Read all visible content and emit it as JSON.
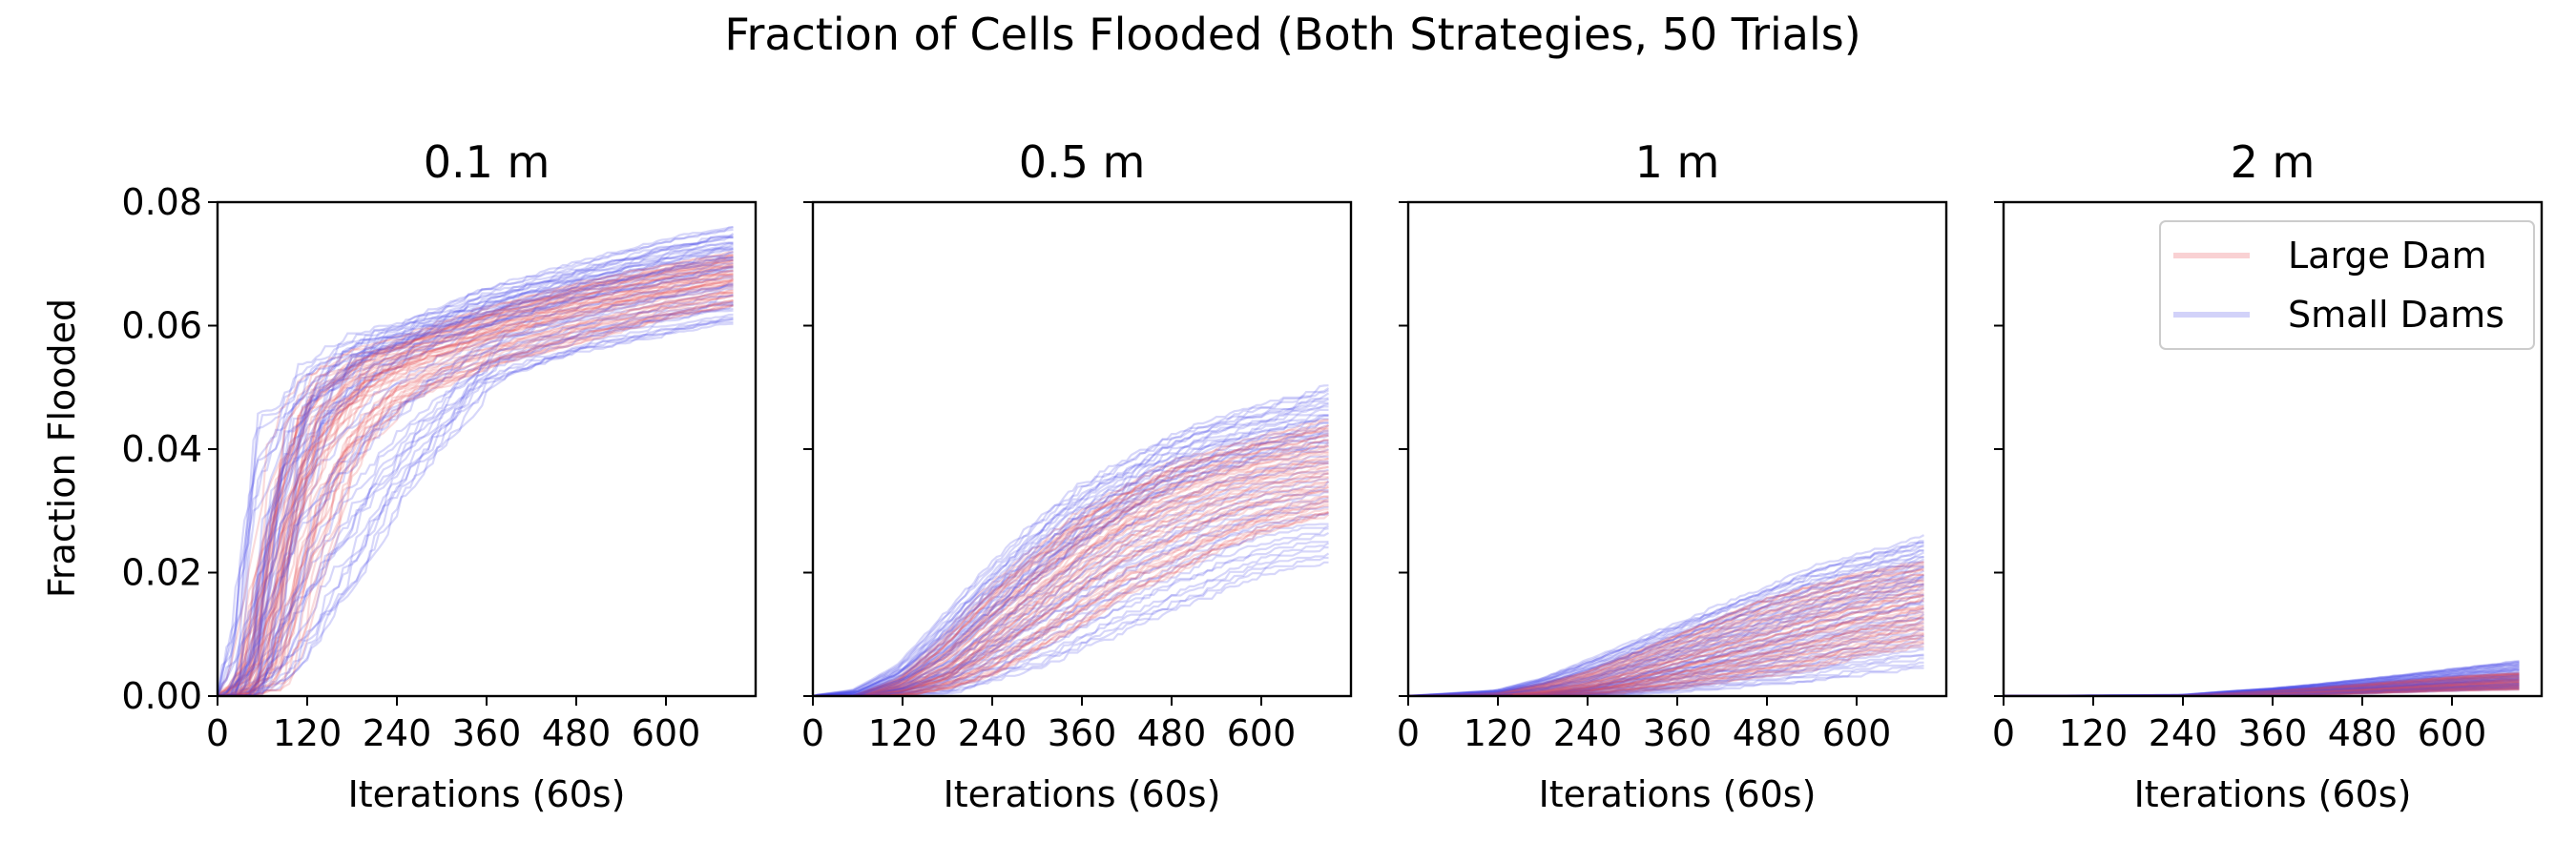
{
  "chart_data": {
    "type": "line",
    "title": "Fraction of Cells Flooded (Both Strategies, 50 Trials)",
    "ylabel": "Fraction Flooded",
    "xlabel": "Iterations (60s)",
    "xlim": [
      0,
      720
    ],
    "ylim": [
      0,
      0.08
    ],
    "xticks": [
      0,
      120,
      240,
      360,
      480,
      600
    ],
    "xtick_labels": [
      "0",
      "120",
      "240",
      "360",
      "480",
      "600"
    ],
    "yticks": [
      0,
      0.02,
      0.04,
      0.06,
      0.08
    ],
    "ytick_labels": [
      "0.00",
      "0.02",
      "0.04",
      "0.06",
      "0.08"
    ],
    "shared_y": true,
    "grid": false,
    "legend_position": "upper-right of last panel",
    "colors": {
      "Large Dam": "#e8494f",
      "Small Dams": "#4a4ae6"
    },
    "legend_entries": [
      "Large Dam",
      "Small Dams"
    ],
    "panels": [
      {
        "title": "0.1 m",
        "series": [
          {
            "name": "Large Dam",
            "trials": 50,
            "x": [
              0,
              30,
              60,
              90,
              120,
              180,
              240,
              360,
              480,
              600,
              690
            ],
            "y_median": [
              0,
              0,
              0.008,
              0.028,
              0.04,
              0.05,
              0.054,
              0.059,
              0.063,
              0.066,
              0.068
            ],
            "y_min": [
              0,
              0,
              0,
              0,
              0.018,
              0.038,
              0.047,
              0.053,
              0.057,
              0.061,
              0.063
            ],
            "y_max": [
              0,
              0.004,
              0.03,
              0.045,
              0.052,
              0.056,
              0.058,
              0.063,
              0.067,
              0.07,
              0.072
            ]
          },
          {
            "name": "Small Dams",
            "trials": 50,
            "x": [
              0,
              30,
              60,
              90,
              120,
              180,
              240,
              360,
              480,
              600,
              690
            ],
            "y_median": [
              0,
              0,
              0.012,
              0.032,
              0.044,
              0.052,
              0.056,
              0.061,
              0.065,
              0.068,
              0.07
            ],
            "y_min": [
              0,
              0,
              0,
              0,
              0.004,
              0.016,
              0.03,
              0.05,
              0.055,
              0.058,
              0.06
            ],
            "y_max": [
              0,
              0.01,
              0.047,
              0.047,
              0.053,
              0.058,
              0.06,
              0.066,
              0.07,
              0.074,
              0.076
            ]
          }
        ]
      },
      {
        "title": "0.5 m",
        "series": [
          {
            "name": "Large Dam",
            "trials": 50,
            "x": [
              0,
              60,
              120,
              180,
              240,
              300,
              360,
              420,
              480,
              540,
              600,
              690
            ],
            "y_median": [
              0,
              0,
              0.001,
              0.004,
              0.01,
              0.016,
              0.022,
              0.027,
              0.03,
              0.033,
              0.035,
              0.037
            ],
            "y_min": [
              0,
              0,
              0,
              0.001,
              0.003,
              0.007,
              0.011,
              0.016,
              0.019,
              0.023,
              0.026,
              0.029
            ],
            "y_max": [
              0,
              0,
              0.003,
              0.01,
              0.018,
              0.024,
              0.03,
              0.034,
              0.038,
              0.04,
              0.042,
              0.045
            ]
          },
          {
            "name": "Small Dams",
            "trials": 50,
            "x": [
              0,
              60,
              120,
              180,
              240,
              300,
              360,
              420,
              480,
              540,
              600,
              690
            ],
            "y_median": [
              0,
              0,
              0.002,
              0.006,
              0.012,
              0.018,
              0.024,
              0.029,
              0.033,
              0.036,
              0.038,
              0.04
            ],
            "y_min": [
              0,
              0,
              0,
              0,
              0.002,
              0.004,
              0.007,
              0.01,
              0.013,
              0.016,
              0.019,
              0.021
            ],
            "y_max": [
              0,
              0.001,
              0.005,
              0.013,
              0.021,
              0.028,
              0.034,
              0.038,
              0.042,
              0.045,
              0.047,
              0.05
            ]
          }
        ]
      },
      {
        "title": "1 m",
        "series": [
          {
            "name": "Large Dam",
            "trials": 50,
            "x": [
              0,
              120,
              180,
              240,
              300,
              360,
              420,
              480,
              540,
              600,
              690
            ],
            "y_median": [
              0,
              0,
              0.0005,
              0.0015,
              0.003,
              0.005,
              0.007,
              0.009,
              0.011,
              0.013,
              0.015
            ],
            "y_min": [
              0,
              0,
              0,
              0,
              0.0005,
              0.001,
              0.002,
              0.003,
              0.004,
              0.006,
              0.008
            ],
            "y_max": [
              0,
              0.0005,
              0.002,
              0.004,
              0.007,
              0.01,
              0.013,
              0.016,
              0.018,
              0.02,
              0.022
            ]
          },
          {
            "name": "Small Dams",
            "trials": 50,
            "x": [
              0,
              120,
              180,
              240,
              300,
              360,
              420,
              480,
              540,
              600,
              690
            ],
            "y_median": [
              0,
              0,
              0.0005,
              0.0015,
              0.0035,
              0.0055,
              0.0075,
              0.0095,
              0.012,
              0.014,
              0.017
            ],
            "y_min": [
              0,
              0,
              0,
              0,
              0,
              0.0005,
              0.001,
              0.0015,
              0.002,
              0.003,
              0.004
            ],
            "y_max": [
              0,
              0.001,
              0.003,
              0.006,
              0.009,
              0.012,
              0.015,
              0.018,
              0.021,
              0.023,
              0.026
            ]
          }
        ]
      },
      {
        "title": "2 m",
        "series": [
          {
            "name": "Large Dam",
            "trials": 50,
            "x": [
              0,
              240,
              300,
              360,
              420,
              480,
              540,
              600,
              690
            ],
            "y_median": [
              0,
              0,
              0.0002,
              0.0004,
              0.0007,
              0.001,
              0.0014,
              0.0018,
              0.0023
            ],
            "y_min": [
              0,
              0,
              0,
              0,
              0.0002,
              0.0004,
              0.0006,
              0.0008,
              0.001
            ],
            "y_max": [
              0,
              0.0001,
              0.0005,
              0.0009,
              0.0014,
              0.002,
              0.0026,
              0.0032,
              0.0038
            ]
          },
          {
            "name": "Small Dams",
            "trials": 50,
            "x": [
              0,
              240,
              300,
              360,
              420,
              480,
              540,
              600,
              690
            ],
            "y_median": [
              0,
              0,
              0.0003,
              0.0006,
              0.0009,
              0.0013,
              0.0018,
              0.0023,
              0.003
            ],
            "y_min": [
              0,
              0,
              0,
              0,
              0.0002,
              0.0004,
              0.0006,
              0.0008,
              0.001
            ],
            "y_max": [
              0,
              0.0002,
              0.0008,
              0.0013,
              0.002,
              0.0028,
              0.0036,
              0.0045,
              0.0058
            ]
          }
        ]
      }
    ]
  }
}
